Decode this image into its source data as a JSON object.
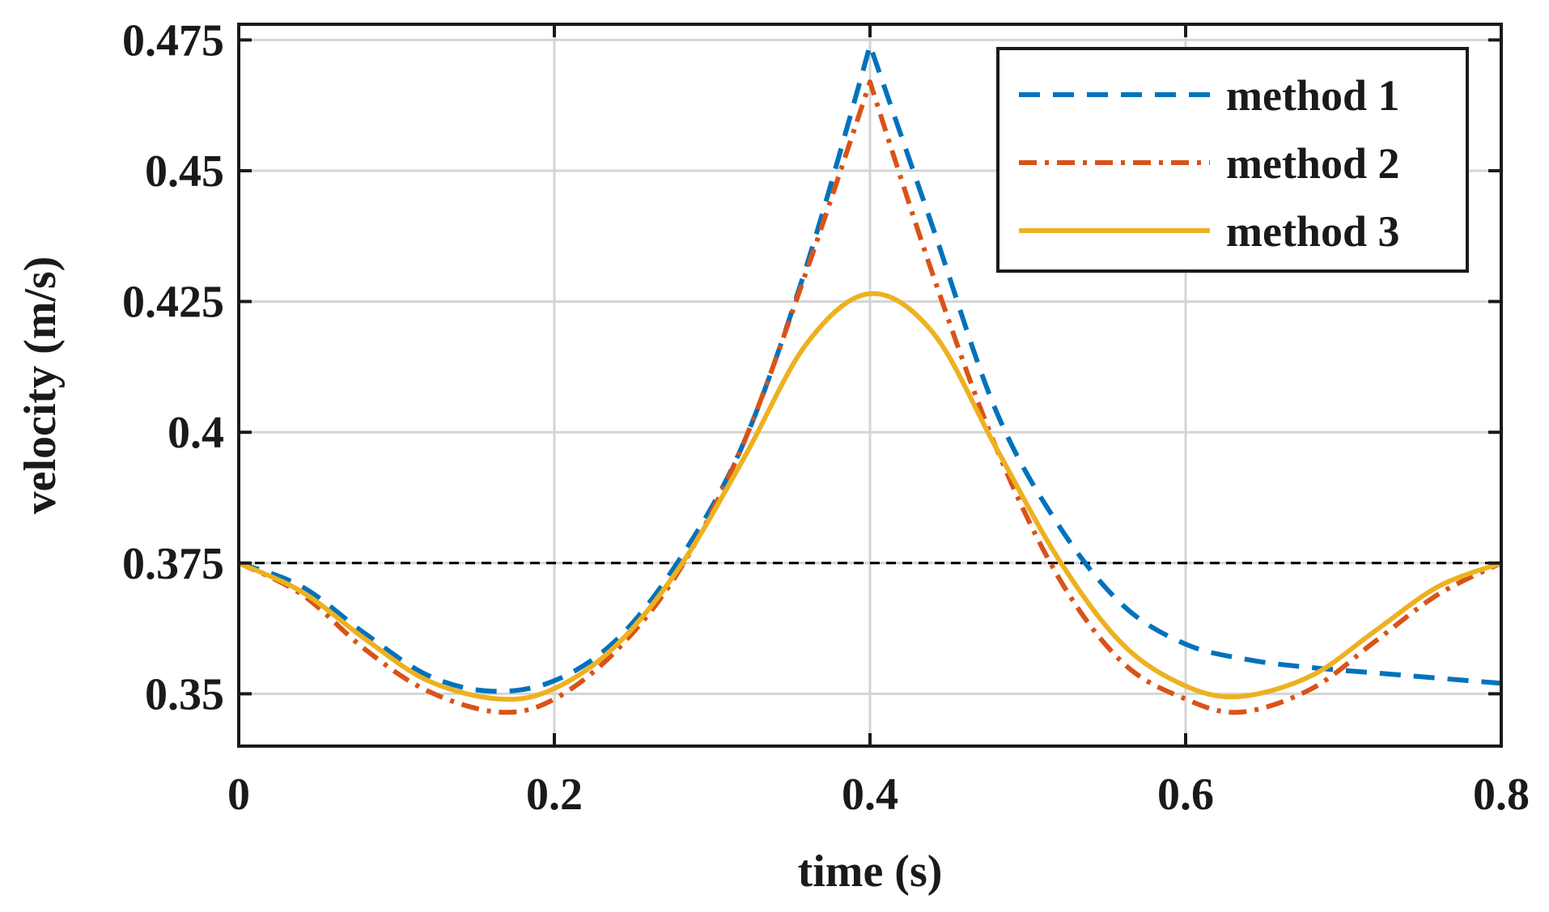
{
  "chart_data": {
    "type": "line",
    "title": "",
    "xlabel": "time (s)",
    "ylabel": "velocity (m/s)",
    "xlim": [
      0,
      0.8
    ],
    "ylim": [
      0.34,
      0.478
    ],
    "xticks": [
      0,
      0.2,
      0.4,
      0.6,
      0.8
    ],
    "xtick_labels": [
      "0",
      "0.2",
      "0.4",
      "0.6",
      "0.8"
    ],
    "yticks": [
      0.35,
      0.375,
      0.4,
      0.425,
      0.45,
      0.475
    ],
    "ytick_labels": [
      "0.35",
      "0.375",
      "0.4",
      "0.425",
      "0.45",
      "0.475"
    ],
    "grid": true,
    "legend_position": "top-right",
    "reference_line": {
      "y": 0.375,
      "style": "dashed",
      "color": "#000000"
    },
    "series": [
      {
        "name": "method 1",
        "style": "dashed",
        "color": "#0072BD",
        "x": [
          0,
          0.04,
          0.08,
          0.12,
          0.16,
          0.2,
          0.24,
          0.28,
          0.32,
          0.36,
          0.4,
          0.44,
          0.48,
          0.52,
          0.56,
          0.6,
          0.64,
          0.68,
          0.72,
          0.76,
          0.8
        ],
        "y": [
          0.375,
          0.3705,
          0.3615,
          0.3535,
          0.3505,
          0.3525,
          0.3605,
          0.376,
          0.398,
          0.432,
          0.474,
          0.439,
          0.404,
          0.382,
          0.367,
          0.3595,
          0.3565,
          0.355,
          0.354,
          0.353,
          0.352
        ]
      },
      {
        "name": "method 2",
        "style": "dashdot",
        "color": "#D95319",
        "x": [
          0,
          0.04,
          0.08,
          0.12,
          0.165,
          0.2,
          0.24,
          0.28,
          0.32,
          0.36,
          0.4,
          0.44,
          0.48,
          0.52,
          0.56,
          0.6,
          0.635,
          0.68,
          0.72,
          0.76,
          0.8
        ],
        "y": [
          0.375,
          0.369,
          0.3585,
          0.3505,
          0.3465,
          0.349,
          0.3585,
          0.374,
          0.398,
          0.431,
          0.467,
          0.43,
          0.397,
          0.372,
          0.356,
          0.349,
          0.3465,
          0.351,
          0.36,
          0.369,
          0.375
        ]
      },
      {
        "name": "method 3",
        "style": "solid",
        "color": "#EDB120",
        "x": [
          0,
          0.04,
          0.08,
          0.12,
          0.165,
          0.2,
          0.24,
          0.28,
          0.32,
          0.36,
          0.4,
          0.44,
          0.48,
          0.52,
          0.56,
          0.6,
          0.635,
          0.68,
          0.72,
          0.76,
          0.8
        ],
        "y": [
          0.375,
          0.3695,
          0.3605,
          0.3525,
          0.349,
          0.351,
          0.3595,
          0.3745,
          0.395,
          0.417,
          0.4265,
          0.419,
          0.397,
          0.3755,
          0.3595,
          0.3515,
          0.3495,
          0.3535,
          0.362,
          0.3705,
          0.375
        ]
      }
    ]
  }
}
